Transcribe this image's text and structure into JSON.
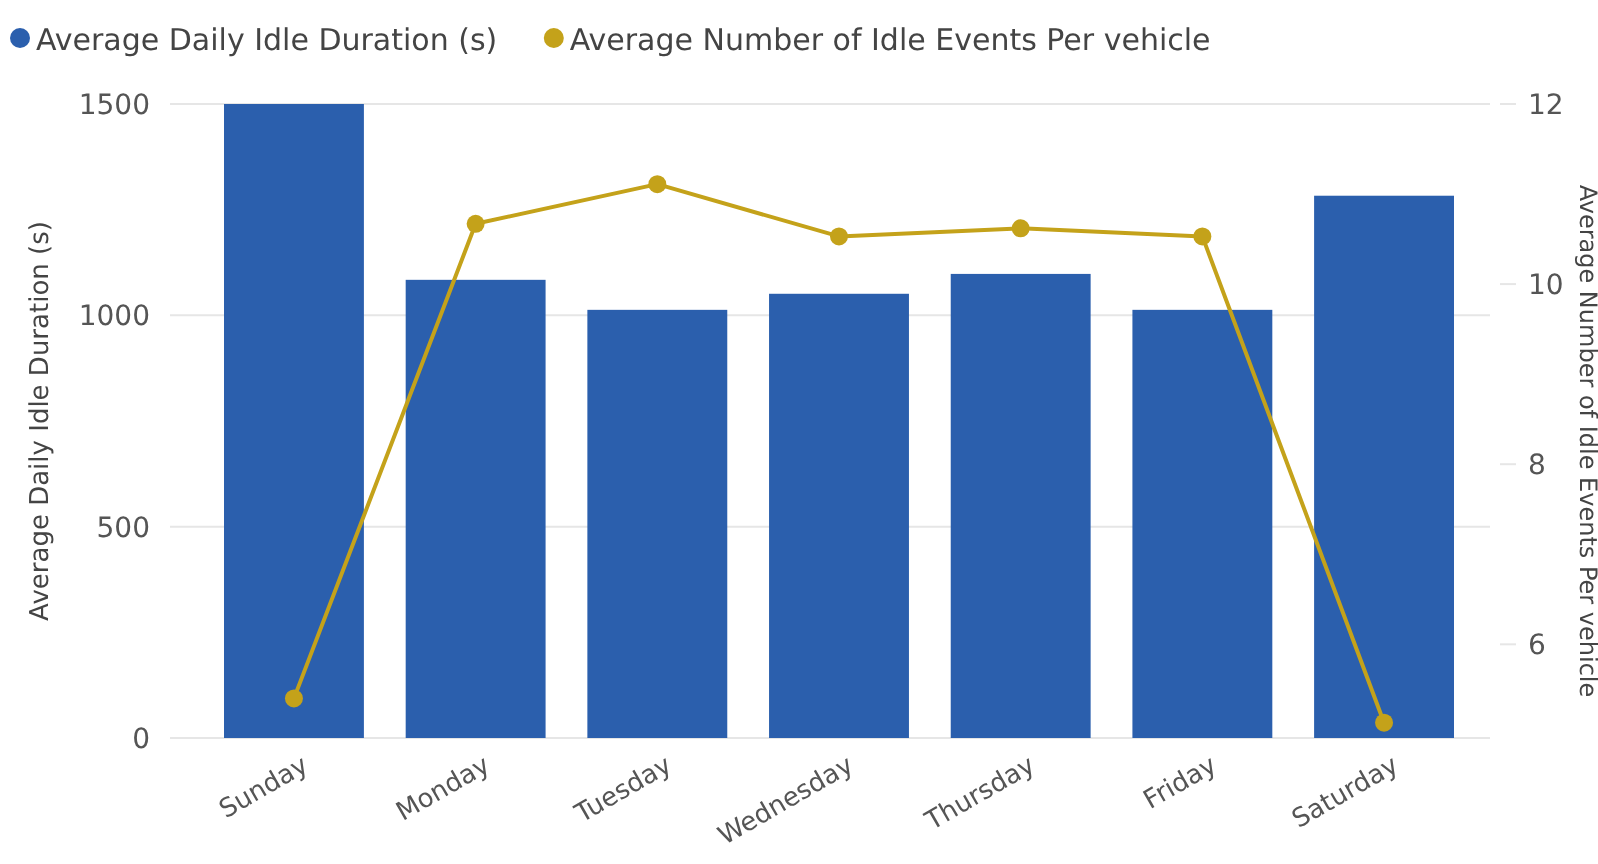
{
  "chart_data": {
    "type": "bar",
    "categories": [
      "Sunday",
      "Monday",
      "Tuesday",
      "Wednesday",
      "Thursday",
      "Friday",
      "Saturday"
    ],
    "series": [
      {
        "name": "Average Daily Idle Duration (s)",
        "color": "#2b5fad",
        "values": [
          1500,
          1084,
          1013,
          1051,
          1098,
          1013,
          1283
        ]
      },
      {
        "name": "Average Number of Idle Events Per vehicle",
        "color": "#c4a21a",
        "type": "line",
        "axis": "y2",
        "values": [
          5.4,
          10.67,
          11.11,
          10.53,
          10.62,
          10.53,
          5.13
        ]
      }
    ],
    "ylabel": "Average Daily Idle Duration (s)",
    "y2label": "Average Number of Idle Events Per vehicle",
    "ylim": [
      0,
      1500
    ],
    "yticks": [
      0,
      500,
      1000,
      1500
    ],
    "y2lim": [
      4.96,
      12
    ],
    "y2ticks": [
      6,
      8,
      10,
      12
    ],
    "grid": "y",
    "legend": "top left",
    "marker": "circle",
    "line_style": "solid"
  }
}
